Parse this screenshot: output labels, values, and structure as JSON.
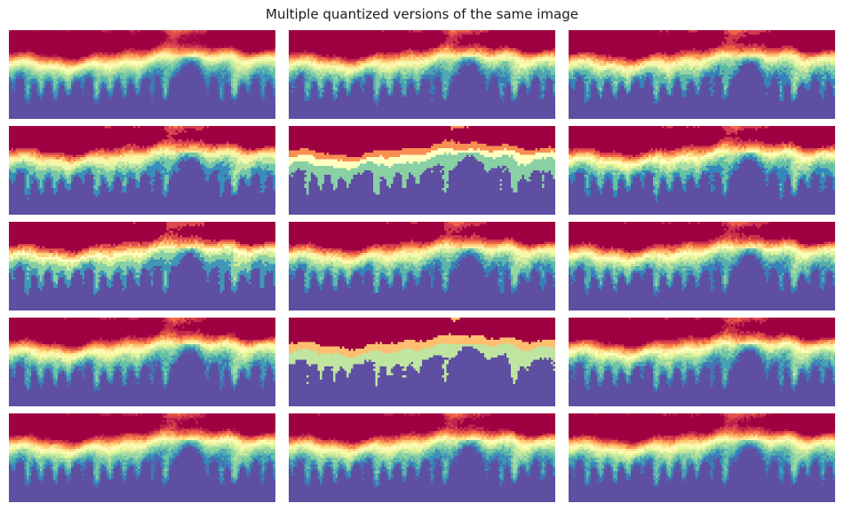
{
  "figure": {
    "title": "Multiple quantized versions of the same image"
  },
  "chart_data": {
    "type": "heatmap",
    "title": "Multiple quantized versions of the same image",
    "colormap": "Spectral_r",
    "axes": "off",
    "layout": {
      "rows": 5,
      "cols": 3
    },
    "panels": [
      {
        "row": 1,
        "col": 1,
        "levels": 0
      },
      {
        "row": 1,
        "col": 2,
        "levels": 14
      },
      {
        "row": 1,
        "col": 3,
        "levels": 12
      },
      {
        "row": 2,
        "col": 1,
        "levels": 10
      },
      {
        "row": 2,
        "col": 2,
        "levels": 5
      },
      {
        "row": 2,
        "col": 3,
        "levels": 11
      },
      {
        "row": 3,
        "col": 1,
        "levels": 9
      },
      {
        "row": 3,
        "col": 2,
        "levels": 12
      },
      {
        "row": 3,
        "col": 3,
        "levels": 13
      },
      {
        "row": 4,
        "col": 1,
        "levels": 16
      },
      {
        "row": 4,
        "col": 2,
        "levels": 4
      },
      {
        "row": 4,
        "col": 3,
        "levels": 15
      },
      {
        "row": 5,
        "col": 1,
        "levels": 20
      },
      {
        "row": 5,
        "col": 2,
        "levels": 18
      },
      {
        "row": 5,
        "col": 3,
        "levels": 22
      }
    ]
  }
}
